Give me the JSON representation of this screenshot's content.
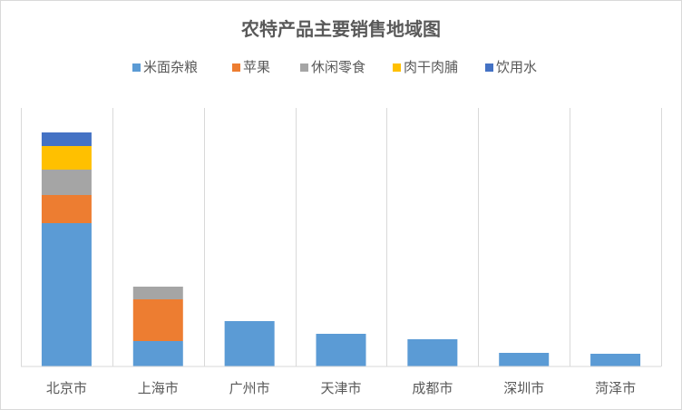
{
  "chart_data": {
    "type": "bar",
    "stacked": true,
    "title": "农特产品主要销售地域图",
    "categories": [
      "北京市",
      "上海市",
      "广州市",
      "天津市",
      "成都市",
      "深圳市",
      "菏泽市"
    ],
    "series": [
      {
        "name": "米面杂粮",
        "color": "#5B9BD5",
        "values": [
          158,
          28,
          50,
          36,
          30,
          15,
          14
        ]
      },
      {
        "name": "苹果",
        "color": "#ED7D31",
        "values": [
          31,
          46,
          0,
          0,
          0,
          0,
          0
        ]
      },
      {
        "name": "休闲零食",
        "color": "#A5A5A5",
        "values": [
          28,
          14,
          0,
          0,
          0,
          0,
          0
        ]
      },
      {
        "name": "肉干肉脯",
        "color": "#FFC000",
        "values": [
          26,
          0,
          0,
          0,
          0,
          0,
          0
        ]
      },
      {
        "name": "饮用水",
        "color": "#4472C4",
        "values": [
          15,
          0,
          0,
          0,
          0,
          0,
          0
        ]
      }
    ],
    "ylim": [
      0,
      285
    ],
    "y_axis_visible": false,
    "grid": "vertical category separators",
    "legend_position": "top"
  }
}
